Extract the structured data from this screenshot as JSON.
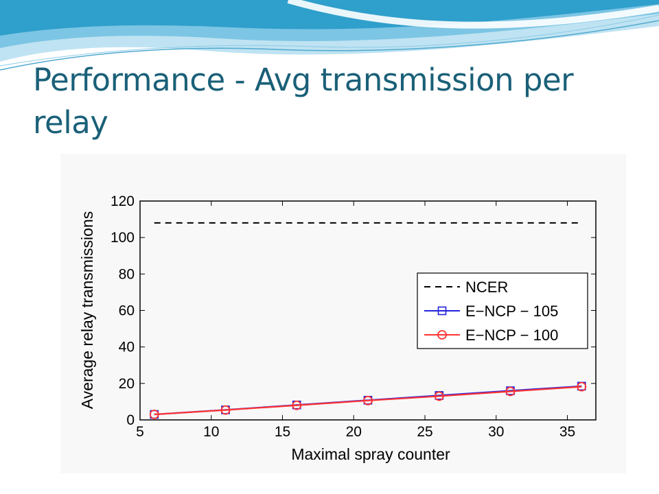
{
  "slide": {
    "title": "Performance - Avg transmission per relay"
  },
  "chart_data": {
    "type": "line",
    "xlabel": "Maximal spray counter",
    "ylabel": "Average relay transmissions",
    "xlim": [
      5,
      37
    ],
    "ylim": [
      0,
      120
    ],
    "xticks": [
      5,
      10,
      15,
      20,
      25,
      30,
      35
    ],
    "yticks": [
      0,
      20,
      40,
      60,
      80,
      100,
      120
    ],
    "grid": false,
    "legend_position": "center-right",
    "x": [
      6,
      11,
      16,
      21,
      26,
      31,
      36
    ],
    "series": [
      {
        "name": "NCER",
        "values": [
          108,
          108,
          108,
          108,
          108,
          108,
          108
        ],
        "color": "#000000",
        "dash": "dashed",
        "marker": "none"
      },
      {
        "name": "E−NCP − 105",
        "values": [
          3,
          5.5,
          8.2,
          10.8,
          13.4,
          16.0,
          18.5
        ],
        "color": "#2222dd",
        "dash": "solid",
        "marker": "square"
      },
      {
        "name": "E−NCP − 100",
        "values": [
          3,
          5.4,
          8.0,
          10.6,
          13.0,
          15.6,
          18.2
        ],
        "color": "#ff3333",
        "dash": "solid",
        "marker": "circle"
      }
    ]
  }
}
